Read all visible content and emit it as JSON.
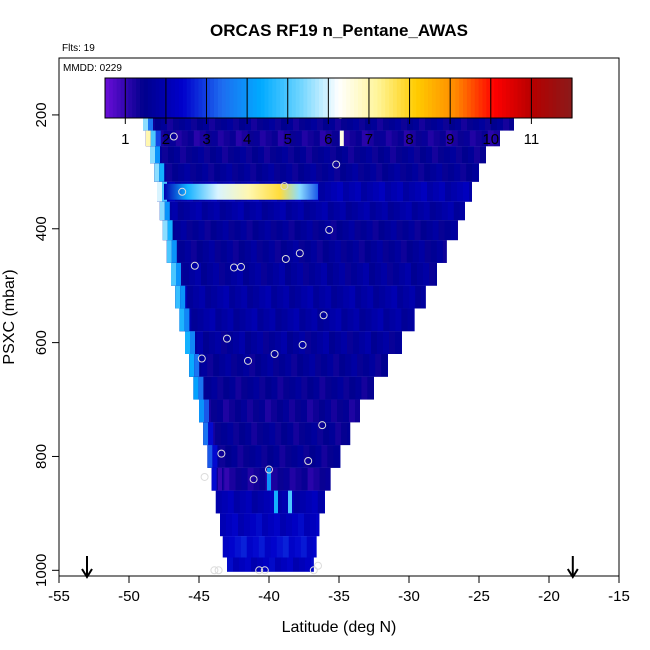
{
  "chart_data": {
    "type": "heatmap",
    "title": "ORCAS RF19 n_Pentane_AWAS",
    "flights_label": "Flts: 19",
    "date_label": "MMDD: 0229",
    "xlabel": "Latitude (deg N)",
    "ylabel": "PSXC (mbar)",
    "xlim": [
      -55,
      -15
    ],
    "ylim": [
      1010,
      100
    ],
    "x_ticks": [
      -55,
      -50,
      -45,
      -40,
      -35,
      -30,
      -25,
      -20,
      -15
    ],
    "y_ticks": [
      200,
      400,
      600,
      800,
      1000
    ],
    "colorbar": {
      "ticks": [
        1,
        2,
        3,
        4,
        5,
        6,
        7,
        8,
        9,
        10,
        11
      ],
      "range": [
        0.5,
        12
      ],
      "colors": [
        "#6a0dd8",
        "#00008c",
        "#0000cc",
        "#1e6cf0",
        "#00aaff",
        "#6cd4ff",
        "#ffffff",
        "#fff59a",
        "#ffcc00",
        "#ff8a00",
        "#ff0000",
        "#b40000",
        "#8b1a1a"
      ]
    },
    "bands": [
      {
        "p": 190,
        "value": 2.0,
        "left": -49.5,
        "right": -22,
        "edge_left": [
          7.5,
          8.0,
          3.0
        ],
        "spots": [
          {
            "x": -34.2,
            "v": 4.5
          },
          {
            "x": -33.0,
            "v": 8.5
          },
          {
            "x": -32.7,
            "v": 10.5
          },
          {
            "x": -32.4,
            "v": 8.5
          },
          {
            "x": -28.8,
            "v": 4.5
          }
        ]
      },
      {
        "p": 215,
        "value": 1.5,
        "left": -49.0,
        "right": -22.5,
        "edge_left": [
          5.5,
          3.5
        ]
      },
      {
        "p": 240,
        "value": 1.3,
        "left": -48.8,
        "right": -23.5,
        "edge_left": [
          7.0,
          5.0,
          3.0
        ],
        "spots": [
          {
            "x": -34.8,
            "v": 6.5
          }
        ]
      },
      {
        "p": 270,
        "value": 1.5,
        "left": -48.5,
        "right": -24.5,
        "edge_left": [
          5.5,
          4.0
        ]
      },
      {
        "p": 300,
        "value": 1.6,
        "left": -48.2,
        "right": -25.0,
        "edge_left": [
          5.5,
          4.5
        ]
      },
      {
        "p": 335,
        "value": 2.0,
        "left": -48.0,
        "right": -25.5,
        "edge_left": [
          6.0,
          5.0
        ],
        "plume": [
          -47.5,
          -36.5
        ]
      },
      {
        "p": 370,
        "value": 1.8,
        "left": -47.8,
        "right": -26.0,
        "edge_left": [
          5.5,
          4.0
        ]
      },
      {
        "p": 400,
        "value": 1.6,
        "left": -47.6,
        "right": -26.5,
        "edge_left": [
          5.5,
          4.5
        ]
      },
      {
        "p": 440,
        "value": 1.6,
        "left": -47.3,
        "right": -27.3,
        "edge_left": [
          5.0,
          4.0
        ]
      },
      {
        "p": 480,
        "value": 1.7,
        "left": -47.0,
        "right": -28.0,
        "edge_left": [
          5.0,
          4.0
        ]
      },
      {
        "p": 520,
        "value": 1.8,
        "left": -46.7,
        "right": -28.8,
        "edge_left": [
          4.8,
          4.0
        ]
      },
      {
        "p": 560,
        "value": 1.8,
        "left": -46.4,
        "right": -29.6,
        "edge_left": [
          4.6,
          3.8
        ]
      },
      {
        "p": 600,
        "value": 1.7,
        "left": -46.0,
        "right": -30.5,
        "edge_left": [
          4.5,
          3.8
        ]
      },
      {
        "p": 640,
        "value": 1.6,
        "left": -45.7,
        "right": -31.5,
        "edge_left": [
          4.4,
          3.5
        ]
      },
      {
        "p": 680,
        "value": 1.5,
        "left": -45.4,
        "right": -32.5,
        "edge_left": [
          4.2,
          3.5
        ]
      },
      {
        "p": 720,
        "value": 1.4,
        "left": -45.0,
        "right": -33.5,
        "edge_left": [
          4.0,
          3.2
        ]
      },
      {
        "p": 760,
        "value": 1.5,
        "left": -44.7,
        "right": -34.2,
        "edge_left": [
          3.5,
          2.5
        ]
      },
      {
        "p": 800,
        "value": 1.5,
        "left": -44.4,
        "right": -34.9,
        "edge_left": [
          3.2,
          2.5
        ]
      },
      {
        "p": 840,
        "value": 1.3,
        "left": -44.1,
        "right": -35.6,
        "edge_left": [
          2.5
        ],
        "spots": [
          {
            "x": -43.5,
            "v": 1.0
          },
          {
            "x": -43.0,
            "v": 1.0
          },
          {
            "x": -40.0,
            "v": 4.0
          }
        ]
      },
      {
        "p": 880,
        "value": 2.0,
        "left": -43.8,
        "right": -36.0,
        "spots": [
          {
            "x": -39.5,
            "v": 4.5
          },
          {
            "x": -38.5,
            "v": 5.0
          }
        ]
      },
      {
        "p": 920,
        "value": 2.2,
        "left": -43.5,
        "right": -36.4
      },
      {
        "p": 960,
        "value": 2.5,
        "left": -43.3,
        "right": -36.6
      },
      {
        "p": 995,
        "value": 2.2,
        "left": -43.0,
        "right": -36.8
      }
    ],
    "sample_points": [
      {
        "x": -49.1,
        "p": 190
      },
      {
        "x": -48.6,
        "p": 190
      },
      {
        "x": -48.0,
        "p": 190
      },
      {
        "x": -47.3,
        "p": 190
      },
      {
        "x": -34.9,
        "p": 200
      },
      {
        "x": -34.4,
        "p": 190
      },
      {
        "x": -33.8,
        "p": 190
      },
      {
        "x": -33.2,
        "p": 190
      },
      {
        "x": -32.6,
        "p": 190
      },
      {
        "x": -30.9,
        "p": 190
      },
      {
        "x": -30.3,
        "p": 190
      },
      {
        "x": -29.7,
        "p": 190
      },
      {
        "x": -29.1,
        "p": 190
      },
      {
        "x": -28.5,
        "p": 190
      },
      {
        "x": -27.9,
        "p": 190
      },
      {
        "x": -26.2,
        "p": 190
      },
      {
        "x": -25.6,
        "p": 190
      },
      {
        "x": -25.0,
        "p": 190
      },
      {
        "x": -24.4,
        "p": 190
      },
      {
        "x": -23.8,
        "p": 190
      },
      {
        "x": -23.2,
        "p": 190
      },
      {
        "x": -22.6,
        "p": 190
      },
      {
        "x": -46.8,
        "p": 238
      },
      {
        "x": -35.2,
        "p": 287
      },
      {
        "x": -46.2,
        "p": 335
      },
      {
        "x": -38.9,
        "p": 325
      },
      {
        "x": -35.7,
        "p": 402
      },
      {
        "x": -37.8,
        "p": 443
      },
      {
        "x": -38.8,
        "p": 453
      },
      {
        "x": -45.3,
        "p": 465
      },
      {
        "x": -42.5,
        "p": 468
      },
      {
        "x": -42.0,
        "p": 467
      },
      {
        "x": -36.1,
        "p": 552
      },
      {
        "x": -43.0,
        "p": 593
      },
      {
        "x": -37.6,
        "p": 604
      },
      {
        "x": -39.6,
        "p": 620
      },
      {
        "x": -44.8,
        "p": 628
      },
      {
        "x": -41.5,
        "p": 632
      },
      {
        "x": -36.2,
        "p": 745
      },
      {
        "x": -43.4,
        "p": 795
      },
      {
        "x": -37.2,
        "p": 808
      },
      {
        "x": -40.0,
        "p": 823
      },
      {
        "x": -44.6,
        "p": 836
      },
      {
        "x": -41.1,
        "p": 840
      },
      {
        "x": -43.9,
        "p": 1000
      },
      {
        "x": -43.6,
        "p": 1000
      },
      {
        "x": -40.7,
        "p": 1000
      },
      {
        "x": -40.3,
        "p": 1000
      },
      {
        "x": -36.8,
        "p": 1000
      },
      {
        "x": -36.5,
        "p": 992
      }
    ],
    "arrows": [
      -53,
      -18.3
    ]
  }
}
